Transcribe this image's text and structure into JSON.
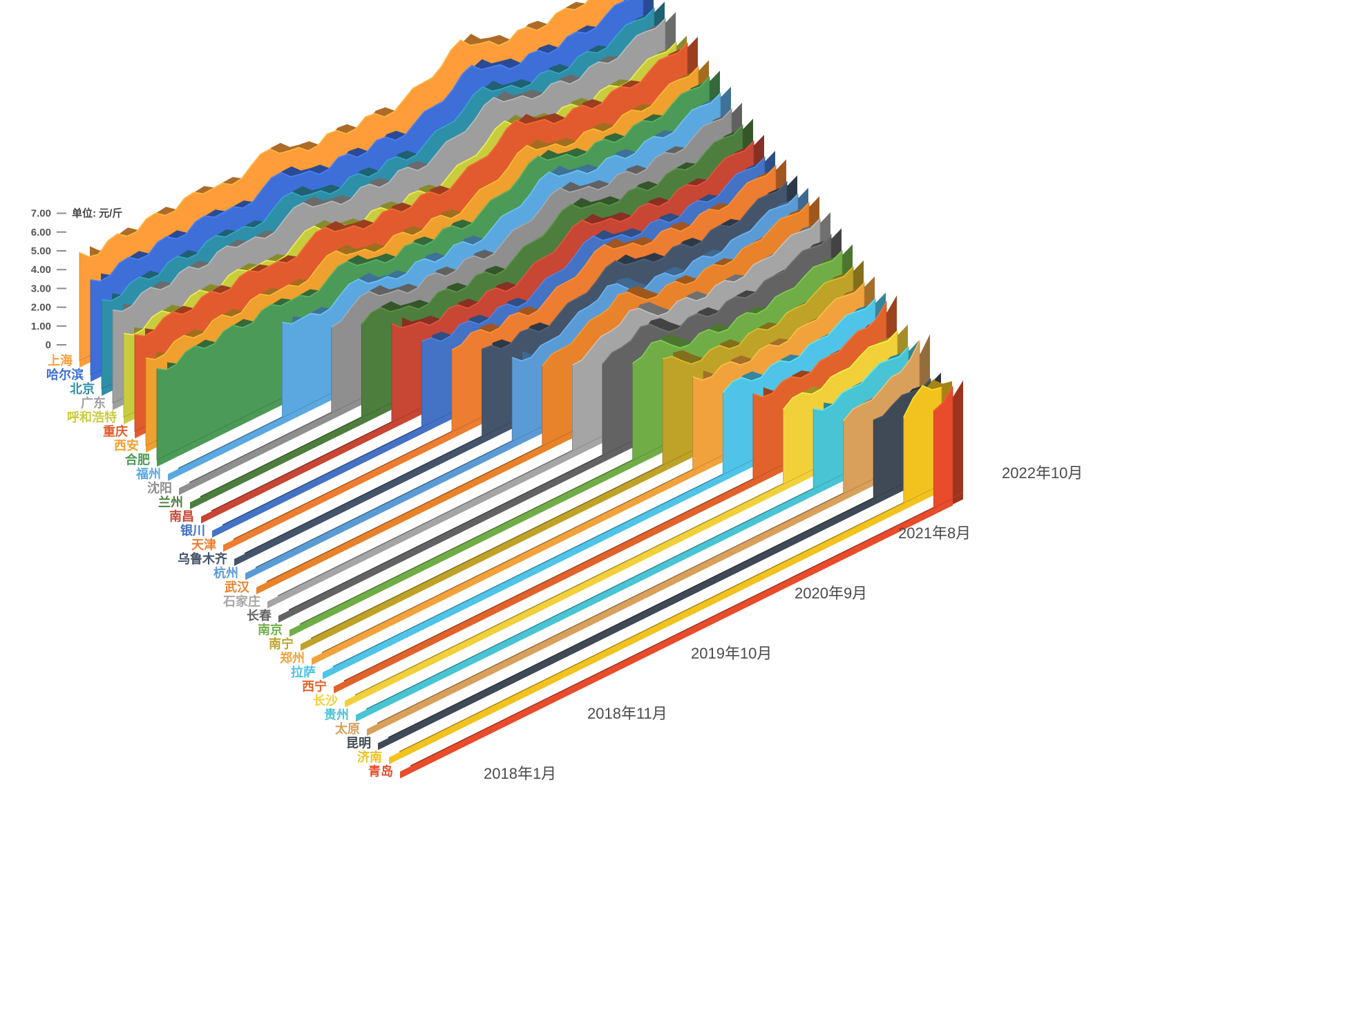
{
  "chart_data": {
    "type": "area",
    "projection": "3d",
    "title": "",
    "unit_label": "单位: 元/斤",
    "ylim": [
      0,
      7
    ],
    "y_ticks": [
      "7.00",
      "6.00",
      "5.00",
      "4.00",
      "3.00",
      "2.00",
      "1.00",
      "0"
    ],
    "x_dates": [
      "2018年1月",
      "2018年11月",
      "2019年10月",
      "2020年9月",
      "2021年8月",
      "2022年10月"
    ],
    "x_range": [
      "2018年1月",
      "2022年10月"
    ],
    "series": [
      {
        "name": "上海",
        "color": "#FF9D3A",
        "values": [
          5.8,
          5.2,
          5.8,
          5.4,
          5.9,
          5.5,
          6.0,
          5.7,
          5.4,
          5.9,
          6.3,
          5.7,
          5.2,
          5.6,
          5.1,
          5.5,
          5.0,
          5.4,
          5.8,
          6.2,
          7.1,
          6.4,
          5.8,
          6.1,
          5.6,
          6.0,
          5.7,
          6.1,
          6.4,
          6.6
        ]
      },
      {
        "name": "哈尔滨",
        "color": "#3E6FD9",
        "values": [
          5.1,
          4.8,
          5.3,
          4.9,
          5.4,
          5.0,
          5.5,
          5.2,
          4.9,
          5.4,
          5.8,
          5.2,
          4.7,
          5.1,
          4.6,
          5.0,
          4.5,
          4.9,
          5.3,
          5.7,
          6.5,
          5.9,
          5.3,
          5.6,
          5.1,
          5.5,
          5.2,
          5.6,
          5.9,
          6.1
        ]
      },
      {
        "name": "北京",
        "color": "#2E8FA8",
        "values": [
          4.8,
          4.5,
          5.0,
          4.6,
          5.1,
          4.7,
          5.2,
          4.9,
          4.6,
          5.1,
          5.5,
          4.9,
          4.4,
          4.8,
          4.3,
          4.7,
          4.2,
          4.6,
          5.0,
          5.4,
          6.1,
          5.5,
          5.0,
          5.3,
          4.8,
          5.2,
          4.9,
          5.3,
          5.6,
          5.8
        ]
      },
      {
        "name": "广东",
        "color": "#9E9E9E",
        "values": [
          5.0,
          4.7,
          5.2,
          4.8,
          5.3,
          4.9,
          5.4,
          5.1,
          4.8,
          5.3,
          5.7,
          5.1,
          4.6,
          5.0,
          4.5,
          4.9,
          4.4,
          4.8,
          5.2,
          5.6,
          6.3,
          5.7,
          5.2,
          5.5,
          5.0,
          5.4,
          5.1,
          5.5,
          5.8,
          6.0
        ]
      },
      {
        "name": "呼和浩特",
        "color": "#C9CC3F",
        "values": [
          4.5,
          4.2,
          4.7,
          4.3,
          4.8,
          4.4,
          4.9,
          4.6,
          4.3,
          4.8,
          5.2,
          4.6,
          4.1,
          4.5,
          4.0,
          4.4,
          3.9,
          4.3,
          4.7,
          5.1,
          5.8,
          5.2,
          4.7,
          5.0,
          4.5,
          4.9,
          4.6,
          5.0,
          5.3,
          5.5
        ]
      },
      {
        "name": "重庆",
        "color": "#E25B2E",
        "values": [
          5.2,
          4.9,
          5.4,
          5.0,
          5.5,
          5.1,
          5.6,
          5.3,
          5.0,
          5.5,
          5.9,
          5.3,
          4.8,
          5.2,
          4.7,
          5.1,
          4.6,
          5.0,
          5.4,
          5.8,
          6.6,
          6.0,
          5.4,
          5.7,
          5.2,
          5.6,
          5.3,
          5.7,
          6.0,
          6.2
        ]
      },
      {
        "name": "西安",
        "color": "#F0A02E",
        "values": [
          4.7,
          4.4,
          4.9,
          4.5,
          5.0,
          4.6,
          5.1,
          4.8,
          4.5,
          5.0,
          5.4,
          4.8,
          4.3,
          4.7,
          4.2,
          4.6,
          4.1,
          4.5,
          4.9,
          5.3,
          6.0,
          5.4,
          4.9,
          5.2,
          4.7,
          5.1,
          4.8,
          5.2,
          5.5,
          5.7
        ]
      },
      {
        "name": "合肥",
        "color": "#4C9A57",
        "values": [
          4.9,
          4.6,
          5.1,
          4.7,
          5.2,
          4.8,
          5.3,
          5.0,
          4.7,
          5.2,
          5.6,
          5.0,
          4.5,
          4.9,
          4.4,
          4.8,
          4.3,
          4.7,
          5.1,
          5.5,
          6.2,
          5.6,
          5.1,
          5.4,
          4.9,
          5.3,
          5.0,
          5.4,
          5.7,
          5.9
        ]
      },
      {
        "name": "福州",
        "color": "#5BA8E0",
        "values": [
          0,
          0,
          0,
          0,
          0,
          0,
          5.1,
          4.8,
          4.5,
          5.0,
          5.4,
          4.8,
          4.4,
          4.8,
          4.3,
          4.7,
          4.2,
          4.6,
          5.0,
          5.4,
          6.1,
          5.5,
          5.0,
          5.3,
          4.8,
          5.2,
          4.9,
          5.3,
          5.6,
          5.8
        ]
      },
      {
        "name": "沈阳",
        "color": "#8F8F8F",
        "values": [
          0,
          0,
          0,
          0,
          0,
          0,
          0,
          0,
          4.6,
          5.1,
          5.5,
          4.9,
          4.4,
          4.8,
          4.3,
          4.7,
          4.2,
          4.6,
          5.0,
          5.4,
          6.0,
          5.4,
          4.9,
          5.2,
          4.7,
          5.1,
          4.8,
          5.2,
          5.5,
          5.7
        ]
      },
      {
        "name": "兰州",
        "color": "#4E7E3E",
        "values": [
          0,
          0,
          0,
          0,
          0,
          0,
          0,
          0,
          0,
          5.0,
          5.4,
          4.8,
          4.3,
          4.7,
          4.2,
          4.6,
          4.1,
          4.5,
          4.9,
          5.3,
          5.9,
          5.3,
          4.8,
          5.1,
          4.6,
          5.0,
          4.7,
          5.1,
          5.4,
          5.6
        ]
      },
      {
        "name": "南昌",
        "color": "#C74634",
        "values": [
          0,
          0,
          0,
          0,
          0,
          0,
          0,
          0,
          0,
          0,
          5.3,
          4.7,
          4.2,
          4.6,
          4.1,
          4.5,
          4.0,
          4.4,
          4.8,
          5.2,
          5.8,
          5.2,
          4.7,
          5.0,
          4.5,
          4.9,
          4.6,
          5.0,
          5.3,
          5.5
        ]
      },
      {
        "name": "银川",
        "color": "#4472C4",
        "values": [
          0,
          0,
          0,
          0,
          0,
          0,
          0,
          0,
          0,
          0,
          0,
          4.6,
          4.1,
          4.5,
          4.0,
          4.4,
          3.9,
          4.3,
          4.7,
          5.1,
          5.7,
          5.1,
          4.6,
          4.9,
          4.4,
          4.8,
          4.5,
          4.9,
          5.2,
          5.4
        ]
      },
      {
        "name": "天津",
        "color": "#ED7D31",
        "values": [
          0,
          0,
          0,
          0,
          0,
          0,
          0,
          0,
          0,
          0,
          0,
          0,
          4.4,
          4.8,
          4.3,
          4.7,
          4.2,
          4.6,
          5.0,
          5.4,
          6.0,
          5.4,
          4.9,
          5.2,
          4.7,
          5.1,
          4.8,
          5.2,
          5.5,
          5.7
        ]
      },
      {
        "name": "乌鲁木齐",
        "color": "#44546A",
        "values": [
          0,
          0,
          0,
          0,
          0,
          0,
          0,
          0,
          0,
          0,
          0,
          0,
          0,
          4.7,
          4.2,
          4.6,
          4.1,
          4.5,
          4.9,
          5.3,
          5.9,
          5.3,
          4.8,
          5.1,
          4.6,
          5.0,
          4.7,
          5.1,
          5.4,
          5.6
        ]
      },
      {
        "name": "杭州",
        "color": "#5B9BD5",
        "values": [
          0,
          0,
          0,
          0,
          0,
          0,
          0,
          0,
          0,
          0,
          0,
          0,
          0,
          0,
          4.5,
          4.0,
          4.4,
          4.8,
          5.2,
          5.8,
          5.2,
          4.7,
          5.0,
          4.5,
          4.9,
          4.6,
          5.0,
          5.3,
          5.5,
          5.7
        ]
      },
      {
        "name": "武汉",
        "color": "#E8822B",
        "values": [
          0,
          0,
          0,
          0,
          0,
          0,
          0,
          0,
          0,
          0,
          0,
          0,
          0,
          0,
          0,
          4.3,
          4.7,
          5.1,
          5.5,
          6.1,
          5.5,
          5.0,
          5.3,
          4.8,
          5.2,
          4.9,
          5.3,
          5.6,
          5.8,
          6.0
        ]
      },
      {
        "name": "石家庄",
        "color": "#A5A5A5",
        "values": [
          0,
          0,
          0,
          0,
          0,
          0,
          0,
          0,
          0,
          0,
          0,
          0,
          0,
          0,
          0,
          0,
          4.6,
          5.0,
          5.4,
          6.0,
          5.4,
          4.9,
          5.2,
          4.7,
          5.1,
          4.8,
          5.2,
          5.5,
          5.7,
          5.9
        ]
      },
      {
        "name": "长春",
        "color": "#636363",
        "values": [
          0,
          0,
          0,
          0,
          0,
          0,
          0,
          0,
          0,
          0,
          0,
          0,
          0,
          0,
          0,
          0,
          0,
          4.9,
          5.3,
          5.9,
          5.3,
          4.8,
          5.1,
          4.6,
          5.0,
          4.7,
          5.1,
          5.4,
          5.6,
          5.8
        ]
      },
      {
        "name": "南京",
        "color": "#70AD47",
        "values": [
          0,
          0,
          0,
          0,
          0,
          0,
          0,
          0,
          0,
          0,
          0,
          0,
          0,
          0,
          0,
          0,
          0,
          0,
          5.2,
          5.8,
          5.2,
          4.7,
          5.0,
          4.5,
          4.9,
          4.6,
          5.0,
          5.3,
          5.5,
          5.7
        ]
      },
      {
        "name": "南宁",
        "color": "#BFA228",
        "values": [
          0,
          0,
          0,
          0,
          0,
          0,
          0,
          0,
          0,
          0,
          0,
          0,
          0,
          0,
          0,
          0,
          0,
          0,
          0,
          5.7,
          5.1,
          4.6,
          4.9,
          4.4,
          4.8,
          4.5,
          4.9,
          5.2,
          5.4,
          5.6
        ]
      },
      {
        "name": "郑州",
        "color": "#F2A23C",
        "values": [
          0,
          0,
          0,
          0,
          0,
          0,
          0,
          0,
          0,
          0,
          0,
          0,
          0,
          0,
          0,
          0,
          0,
          0,
          0,
          0,
          5.0,
          4.5,
          4.8,
          4.3,
          4.7,
          4.4,
          4.8,
          5.1,
          5.3,
          5.5
        ]
      },
      {
        "name": "拉萨",
        "color": "#4FC3E8",
        "values": [
          0,
          0,
          0,
          0,
          0,
          0,
          0,
          0,
          0,
          0,
          0,
          0,
          0,
          0,
          0,
          0,
          0,
          0,
          0,
          0,
          0,
          4.4,
          4.7,
          4.2,
          4.6,
          4.3,
          4.7,
          5.0,
          5.2,
          5.4
        ]
      },
      {
        "name": "西宁",
        "color": "#E2622B",
        "values": [
          0,
          0,
          0,
          0,
          0,
          0,
          0,
          0,
          0,
          0,
          0,
          0,
          0,
          0,
          0,
          0,
          0,
          0,
          0,
          0,
          0,
          0,
          4.6,
          4.1,
          4.5,
          4.2,
          4.6,
          4.9,
          5.1,
          6.0
        ]
      },
      {
        "name": "长沙",
        "color": "#F2D03A",
        "values": [
          0,
          0,
          0,
          0,
          0,
          0,
          0,
          0,
          0,
          0,
          0,
          0,
          0,
          0,
          0,
          0,
          0,
          0,
          0,
          0,
          0,
          0,
          0,
          4.0,
          4.4,
          4.1,
          4.5,
          4.8,
          5.0,
          5.2
        ]
      },
      {
        "name": "贵州",
        "color": "#49C4D4",
        "values": [
          0,
          0,
          0,
          0,
          0,
          0,
          0,
          0,
          0,
          0,
          0,
          0,
          0,
          0,
          0,
          0,
          0,
          0,
          0,
          0,
          0,
          0,
          0,
          0,
          4.3,
          4.0,
          4.4,
          4.7,
          4.9,
          5.1
        ]
      },
      {
        "name": "太原",
        "color": "#D9A05B",
        "values": [
          0,
          0,
          0,
          0,
          0,
          0,
          0,
          0,
          0,
          0,
          0,
          0,
          0,
          0,
          0,
          0,
          0,
          0,
          0,
          0,
          0,
          0,
          0,
          0,
          0,
          3.9,
          4.3,
          4.6,
          5.0,
          6.2
        ]
      },
      {
        "name": "昆明",
        "color": "#3F4A56",
        "values": [
          0,
          0,
          0,
          0,
          0,
          0,
          0,
          0,
          0,
          0,
          0,
          0,
          0,
          0,
          0,
          0,
          0,
          0,
          0,
          0,
          0,
          0,
          0,
          0,
          0,
          0,
          4.2,
          4.5,
          4.7,
          4.9
        ]
      },
      {
        "name": "济南",
        "color": "#F2C21F",
        "values": [
          0,
          0,
          0,
          0,
          0,
          0,
          0,
          0,
          0,
          0,
          0,
          0,
          0,
          0,
          0,
          0,
          0,
          0,
          0,
          0,
          0,
          0,
          0,
          0,
          0,
          0,
          0,
          4.6,
          5.8,
          5.2
        ]
      },
      {
        "name": "青岛",
        "color": "#E84C2B",
        "values": [
          0,
          0,
          0,
          0,
          0,
          0,
          0,
          0,
          0,
          0,
          0,
          0,
          0,
          0,
          0,
          0,
          0,
          0,
          0,
          0,
          0,
          0,
          0,
          0,
          0,
          0,
          0,
          0,
          5.2,
          6.0
        ]
      }
    ]
  }
}
